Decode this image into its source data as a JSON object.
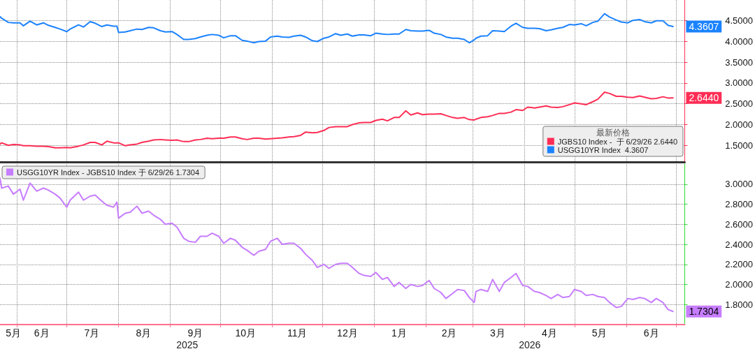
{
  "chart_data": [
    {
      "type": "line",
      "legend_title": "最新价格",
      "legend": "bottom right",
      "grid": true,
      "tick_labels": "y",
      "marker": "none",
      "line_style": "solid",
      "x": [
        "2025-05-22",
        "2025-05-23",
        "2025-05-27",
        "2025-05-30",
        "2025-06-03",
        "2025-06-05",
        "2025-06-09",
        "2025-06-13",
        "2025-06-17",
        "2025-06-20",
        "2025-06-24",
        "2025-06-27",
        "2025-07-01",
        "2025-07-03",
        "2025-07-08",
        "2025-07-11",
        "2025-07-15",
        "2025-07-18",
        "2025-07-22",
        "2025-07-25",
        "2025-07-29",
        "2025-07-31",
        "2025-08-01",
        "2025-08-05",
        "2025-08-08",
        "2025-08-12",
        "2025-08-15",
        "2025-08-19",
        "2025-08-22",
        "2025-08-26",
        "2025-08-29",
        "2025-09-02",
        "2025-09-05",
        "2025-09-09",
        "2025-09-12",
        "2025-09-16",
        "2025-09-19",
        "2025-09-23",
        "2025-09-26",
        "2025-09-30",
        "2025-10-03",
        "2025-10-07",
        "2025-10-10",
        "2025-10-14",
        "2025-10-17",
        "2025-10-21",
        "2025-10-24",
        "2025-10-28",
        "2025-10-31",
        "2025-11-04",
        "2025-11-07",
        "2025-11-11",
        "2025-11-14",
        "2025-11-18",
        "2025-11-21",
        "2025-11-25",
        "2025-11-28",
        "2025-12-02",
        "2025-12-05",
        "2025-12-09",
        "2025-12-12",
        "2025-12-16",
        "2025-12-19",
        "2025-12-23",
        "2025-12-26",
        "2025-12-30",
        "2026-01-02",
        "2026-01-06",
        "2026-01-09",
        "2026-01-13",
        "2026-01-16",
        "2026-01-20",
        "2026-01-23",
        "2026-01-27",
        "2026-01-30",
        "2026-02-03",
        "2026-02-06",
        "2026-02-10",
        "2026-02-13",
        "2026-02-17",
        "2026-02-20",
        "2026-02-24",
        "2026-02-27",
        "2026-03-02",
        "2026-03-03",
        "2026-03-06",
        "2026-03-10",
        "2026-03-13",
        "2026-03-17",
        "2026-03-20",
        "2026-03-24",
        "2026-03-27",
        "2026-03-31",
        "2026-04-03",
        "2026-04-07",
        "2026-04-10",
        "2026-04-14",
        "2026-04-17",
        "2026-04-21",
        "2026-04-24",
        "2026-04-28",
        "2026-05-01",
        "2026-05-05",
        "2026-05-08",
        "2026-05-12",
        "2026-05-15",
        "2026-05-19",
        "2026-05-22",
        "2026-05-26",
        "2026-05-29",
        "2026-06-02",
        "2026-06-05",
        "2026-06-09",
        "2026-06-12",
        "2026-06-16",
        "2026-06-19",
        "2026-06-23",
        "2026-06-26",
        "2026-06-29"
      ],
      "series": [
        {
          "name": "JGBS10 Index -  于 6/29/26 2.6440",
          "color": "#ff2d55",
          "values": [
            1.53,
            1.56,
            1.5,
            1.52,
            1.51,
            1.49,
            1.49,
            1.48,
            1.48,
            1.47,
            1.44,
            1.44,
            1.45,
            1.44,
            1.48,
            1.51,
            1.57,
            1.57,
            1.51,
            1.6,
            1.56,
            1.56,
            1.56,
            1.49,
            1.51,
            1.53,
            1.57,
            1.6,
            1.63,
            1.64,
            1.63,
            1.62,
            1.63,
            1.59,
            1.59,
            1.63,
            1.64,
            1.67,
            1.66,
            1.67,
            1.67,
            1.7,
            1.7,
            1.66,
            1.64,
            1.67,
            1.67,
            1.65,
            1.66,
            1.67,
            1.68,
            1.7,
            1.71,
            1.74,
            1.82,
            1.8,
            1.81,
            1.86,
            1.93,
            1.95,
            1.95,
            1.95,
            2.0,
            2.04,
            2.05,
            2.05,
            2.1,
            2.13,
            2.09,
            2.17,
            2.17,
            2.33,
            2.23,
            2.28,
            2.24,
            2.25,
            2.25,
            2.26,
            2.22,
            2.17,
            2.15,
            2.17,
            2.12,
            2.11,
            2.13,
            2.17,
            2.19,
            2.22,
            2.27,
            2.27,
            2.3,
            2.36,
            2.34,
            2.42,
            2.4,
            2.42,
            2.45,
            2.42,
            2.41,
            2.43,
            2.48,
            2.52,
            2.5,
            2.48,
            2.55,
            2.61,
            2.78,
            2.75,
            2.68,
            2.68,
            2.66,
            2.65,
            2.69,
            2.66,
            2.62,
            2.63,
            2.67,
            2.64,
            2.644
          ],
          "value_labels": [
            null,
            null,
            null,
            null,
            null,
            null,
            null,
            null,
            null,
            null,
            null,
            null,
            null,
            null,
            null,
            null,
            null,
            null,
            null,
            null,
            null,
            null,
            null,
            null,
            null,
            null,
            null,
            null,
            null,
            null,
            null,
            null,
            null,
            null,
            null,
            null,
            null,
            null,
            null,
            null,
            null,
            null,
            null,
            null,
            null,
            null,
            null,
            null,
            null,
            null,
            null,
            null,
            null,
            null,
            null,
            null,
            null,
            null,
            null,
            null,
            null,
            null,
            null,
            null,
            null,
            null,
            null,
            null,
            null,
            null,
            null,
            null,
            null,
            null,
            null,
            null,
            null,
            null,
            null,
            null,
            null,
            null,
            null,
            null,
            null,
            null,
            null,
            null,
            null,
            null,
            null,
            null,
            null,
            null,
            null,
            null,
            null,
            null,
            null,
            null,
            null,
            null,
            null,
            null,
            null,
            null,
            null,
            null,
            null,
            null,
            null,
            null,
            null,
            null,
            null,
            null,
            null,
            null,
            "2.6440"
          ]
        },
        {
          "name": "USGG10YR Index  4.3607",
          "color": "#1a82ff",
          "values": [
            4.6,
            4.56,
            4.46,
            4.45,
            4.45,
            4.38,
            4.49,
            4.4,
            4.45,
            4.39,
            4.34,
            4.3,
            4.24,
            4.3,
            4.4,
            4.35,
            4.48,
            4.44,
            4.36,
            4.4,
            4.37,
            4.37,
            4.22,
            4.23,
            4.26,
            4.3,
            4.29,
            4.34,
            4.33,
            4.26,
            4.23,
            4.24,
            4.17,
            4.05,
            4.05,
            4.07,
            4.11,
            4.15,
            4.17,
            4.15,
            4.09,
            4.14,
            4.14,
            4.03,
            4.01,
            3.97,
            4.0,
            4.01,
            4.11,
            4.13,
            4.11,
            4.1,
            4.13,
            4.15,
            4.11,
            4.02,
            4.0,
            4.08,
            4.11,
            4.19,
            4.15,
            4.18,
            4.13,
            4.16,
            4.16,
            4.14,
            4.2,
            4.18,
            4.17,
            4.18,
            4.18,
            4.29,
            4.26,
            4.25,
            4.25,
            4.27,
            4.2,
            4.17,
            4.11,
            4.08,
            4.08,
            4.05,
            3.97,
            4.04,
            4.08,
            4.13,
            4.14,
            4.26,
            4.25,
            4.24,
            4.37,
            4.44,
            4.34,
            4.32,
            4.32,
            4.31,
            4.26,
            4.28,
            4.32,
            4.34,
            4.41,
            4.4,
            4.43,
            4.38,
            4.46,
            4.49,
            4.67,
            4.59,
            4.52,
            4.47,
            4.45,
            4.51,
            4.53,
            4.48,
            4.45,
            4.5,
            4.5,
            4.39,
            4.3607
          ],
          "value_labels": [
            null,
            null,
            null,
            null,
            null,
            null,
            null,
            null,
            null,
            null,
            null,
            null,
            null,
            null,
            null,
            null,
            null,
            null,
            null,
            null,
            null,
            null,
            null,
            null,
            null,
            null,
            null,
            null,
            null,
            null,
            null,
            null,
            null,
            null,
            null,
            null,
            null,
            null,
            null,
            null,
            null,
            null,
            null,
            null,
            null,
            null,
            null,
            null,
            null,
            null,
            null,
            null,
            null,
            null,
            null,
            null,
            null,
            null,
            null,
            null,
            null,
            null,
            null,
            null,
            null,
            null,
            null,
            null,
            null,
            null,
            null,
            null,
            null,
            null,
            null,
            null,
            null,
            null,
            null,
            null,
            null,
            null,
            null,
            null,
            null,
            null,
            null,
            null,
            null,
            null,
            null,
            null,
            null,
            null,
            null,
            null,
            null,
            null,
            null,
            null,
            null,
            null,
            null,
            null,
            null,
            null,
            null,
            null,
            null,
            null,
            null,
            null,
            null,
            null,
            null,
            null,
            null,
            null,
            "4.3607"
          ]
        }
      ],
      "xlim": [
        "2025-05-22",
        "2026-07-06"
      ],
      "xticks": [
        {
          "value": "2025-06-01",
          "label": null
        },
        {
          "value": "2025-07-01",
          "label": null
        },
        {
          "value": "2025-08-01",
          "label": null
        },
        {
          "value": "2025-09-01",
          "label": null
        },
        {
          "value": "2025-10-01",
          "label": null
        },
        {
          "value": "2025-11-01",
          "label": null
        },
        {
          "value": "2025-12-01",
          "label": null
        },
        {
          "value": "2026-01-01",
          "label": null
        },
        {
          "value": "2026-02-01",
          "label": null
        },
        {
          "value": "2026-03-01",
          "label": null
        },
        {
          "value": "2026-04-01",
          "label": null
        },
        {
          "value": "2026-05-01",
          "label": null
        },
        {
          "value": "2026-06-01",
          "label": null
        },
        {
          "value": "2026-07-01",
          "label": null
        }
      ],
      "ylim": [
        1.1,
        5.0
      ],
      "yticks": [
        {
          "value": 1.5,
          "label": "1.5000"
        },
        {
          "value": 2,
          "label": "2.0000"
        },
        {
          "value": 2.5,
          "label": "2.5000"
        },
        {
          "value": 3,
          "label": "3.0000"
        },
        {
          "value": 3.5,
          "label": "3.5000"
        },
        {
          "value": 4,
          "label": "4.0000"
        },
        {
          "value": 4.5,
          "label": "4.5000"
        }
      ]
    },
    {
      "type": "line",
      "legend": "top left",
      "grid": true,
      "marker": "none",
      "line_style": "solid",
      "annotations": [
        "2025",
        "2026"
      ],
      "series": [
        {
          "name": "USGG10YR Index - JGBS10 Index 于 6/29/26 1.7304",
          "color": "#c77dff",
          "x": [
            "2025-05-22",
            "2025-05-23",
            "2025-05-27",
            "2025-05-30",
            "2025-06-03",
            "2025-06-05",
            "2025-06-09",
            "2025-06-13",
            "2025-06-17",
            "2025-06-20",
            "2025-06-24",
            "2025-06-27",
            "2025-07-01",
            "2025-07-03",
            "2025-07-08",
            "2025-07-11",
            "2025-07-15",
            "2025-07-18",
            "2025-07-22",
            "2025-07-25",
            "2025-07-29",
            "2025-07-31",
            "2025-08-01",
            "2025-08-05",
            "2025-08-08",
            "2025-08-12",
            "2025-08-15",
            "2025-08-19",
            "2025-08-22",
            "2025-08-26",
            "2025-08-29",
            "2025-09-02",
            "2025-09-05",
            "2025-09-09",
            "2025-09-12",
            "2025-09-16",
            "2025-09-19",
            "2025-09-23",
            "2025-09-26",
            "2025-09-30",
            "2025-10-03",
            "2025-10-07",
            "2025-10-10",
            "2025-10-14",
            "2025-10-17",
            "2025-10-21",
            "2025-10-24",
            "2025-10-28",
            "2025-10-31",
            "2025-11-04",
            "2025-11-07",
            "2025-11-11",
            "2025-11-14",
            "2025-11-18",
            "2025-11-21",
            "2025-11-25",
            "2025-11-28",
            "2025-12-02",
            "2025-12-05",
            "2025-12-09",
            "2025-12-12",
            "2025-12-16",
            "2025-12-19",
            "2025-12-23",
            "2025-12-26",
            "2025-12-30",
            "2026-01-02",
            "2026-01-06",
            "2026-01-09",
            "2026-01-13",
            "2026-01-16",
            "2026-01-20",
            "2026-01-23",
            "2026-01-27",
            "2026-01-30",
            "2026-02-03",
            "2026-02-06",
            "2026-02-10",
            "2026-02-13",
            "2026-02-17",
            "2026-02-20",
            "2026-02-24",
            "2026-02-27",
            "2026-03-02",
            "2026-03-03",
            "2026-03-06",
            "2026-03-10",
            "2026-03-13",
            "2026-03-17",
            "2026-03-20",
            "2026-03-24",
            "2026-03-27",
            "2026-03-31",
            "2026-04-03",
            "2026-04-07",
            "2026-04-10",
            "2026-04-14",
            "2026-04-17",
            "2026-04-21",
            "2026-04-24",
            "2026-04-28",
            "2026-05-01",
            "2026-05-05",
            "2026-05-08",
            "2026-05-12",
            "2026-05-15",
            "2026-05-19",
            "2026-05-22",
            "2026-05-26",
            "2026-05-29",
            "2026-06-02",
            "2026-06-05",
            "2026-06-09",
            "2026-06-12",
            "2026-06-16",
            "2026-06-19",
            "2026-06-23",
            "2026-06-26",
            "2026-06-29"
          ],
          "values": [
            3.06,
            2.96,
            2.98,
            2.9,
            2.95,
            2.84,
            3.01,
            2.93,
            2.96,
            2.94,
            2.9,
            2.86,
            2.77,
            2.84,
            2.92,
            2.84,
            2.88,
            2.89,
            2.83,
            2.79,
            2.77,
            2.82,
            2.66,
            2.71,
            2.72,
            2.78,
            2.71,
            2.73,
            2.69,
            2.65,
            2.6,
            2.61,
            2.57,
            2.46,
            2.43,
            2.42,
            2.48,
            2.48,
            2.51,
            2.48,
            2.41,
            2.46,
            2.44,
            2.37,
            2.34,
            2.29,
            2.33,
            2.35,
            2.43,
            2.46,
            2.4,
            2.41,
            2.41,
            2.36,
            2.3,
            2.24,
            2.17,
            2.2,
            2.16,
            2.2,
            2.21,
            2.21,
            2.17,
            2.11,
            2.09,
            2.08,
            2.12,
            2.05,
            2.07,
            1.98,
            2.02,
            1.96,
            2.0,
            1.98,
            1.99,
            2.04,
            1.96,
            1.92,
            1.86,
            1.91,
            1.95,
            1.94,
            1.87,
            1.82,
            1.93,
            1.95,
            1.93,
            2.05,
            1.93,
            2.02,
            2.07,
            2.11,
            1.99,
            1.98,
            1.93,
            1.92,
            1.89,
            1.86,
            1.9,
            1.87,
            1.88,
            1.95,
            1.93,
            1.89,
            1.9,
            1.88,
            1.87,
            1.82,
            1.77,
            1.78,
            1.86,
            1.85,
            1.87,
            1.86,
            1.82,
            1.86,
            1.82,
            1.75,
            1.7304
          ],
          "value_labels": [
            null,
            null,
            null,
            null,
            null,
            null,
            null,
            null,
            null,
            null,
            null,
            null,
            null,
            null,
            null,
            null,
            null,
            null,
            null,
            null,
            null,
            null,
            null,
            null,
            null,
            null,
            null,
            null,
            null,
            null,
            null,
            null,
            null,
            null,
            null,
            null,
            null,
            null,
            null,
            null,
            null,
            null,
            null,
            null,
            null,
            null,
            null,
            null,
            null,
            null,
            null,
            null,
            null,
            null,
            null,
            null,
            null,
            null,
            null,
            null,
            null,
            null,
            null,
            null,
            null,
            null,
            null,
            null,
            null,
            null,
            null,
            null,
            null,
            null,
            null,
            null,
            null,
            null,
            null,
            null,
            null,
            null,
            null,
            null,
            null,
            null,
            null,
            null,
            null,
            null,
            null,
            null,
            null,
            null,
            null,
            null,
            null,
            null,
            null,
            null,
            null,
            null,
            null,
            null,
            null,
            null,
            null,
            null,
            null,
            null,
            null,
            null,
            null,
            null,
            null,
            null,
            null,
            null,
            "1.7304"
          ]
        }
      ],
      "xlim": [
        "2025-05-22",
        "2026-07-06"
      ],
      "xticks": [
        {
          "value": "2025-05-30",
          "label": "5月"
        },
        {
          "value": "2025-06-01",
          "label": null
        },
        {
          "value": "2025-06-16",
          "label": "6月"
        },
        {
          "value": "2025-07-01",
          "label": null
        },
        {
          "value": "2025-07-16",
          "label": "7月"
        },
        {
          "value": "2025-08-01",
          "label": null
        },
        {
          "value": "2025-08-16",
          "label": "8月"
        },
        {
          "value": "2025-09-01",
          "label": null
        },
        {
          "value": "2025-09-16",
          "label": "9月"
        },
        {
          "value": "2025-10-01",
          "label": null
        },
        {
          "value": "2025-10-16",
          "label": "10月"
        },
        {
          "value": "2025-11-01",
          "label": null
        },
        {
          "value": "2025-11-16",
          "label": "11月"
        },
        {
          "value": "2025-12-01",
          "label": null
        },
        {
          "value": "2025-12-16",
          "label": "12月"
        },
        {
          "value": "2026-01-01",
          "label": null
        },
        {
          "value": "2026-01-16",
          "label": "1月"
        },
        {
          "value": "2026-02-01",
          "label": null
        },
        {
          "value": "2026-02-15",
          "label": "2月"
        },
        {
          "value": "2026-03-01",
          "label": null
        },
        {
          "value": "2026-03-16",
          "label": "3月"
        },
        {
          "value": "2026-04-01",
          "label": null
        },
        {
          "value": "2026-04-16",
          "label": "4月"
        },
        {
          "value": "2026-05-01",
          "label": null
        },
        {
          "value": "2026-05-16",
          "label": "5月"
        },
        {
          "value": "2026-06-01",
          "label": null
        },
        {
          "value": "2026-06-16",
          "label": "6月"
        },
        {
          "value": "2026-07-01",
          "label": null
        }
      ],
      "ylim": [
        1.6,
        3.2
      ],
      "yticks": [
        {
          "value": 1.8,
          "label": "1.8000"
        },
        {
          "value": 2,
          "label": "2.0000"
        },
        {
          "value": 2.2,
          "label": "2.2000"
        },
        {
          "value": 2.4,
          "label": "2.4000"
        },
        {
          "value": 2.6,
          "label": "2.6000"
        },
        {
          "value": 2.8,
          "label": "2.8000"
        },
        {
          "value": 3,
          "label": "3.0000"
        }
      ]
    }
  ]
}
